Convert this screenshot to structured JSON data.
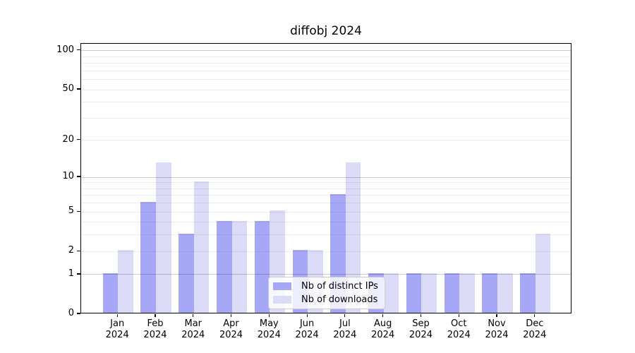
{
  "chart_data": {
    "type": "bar",
    "title": "diffobj 2024",
    "xlabel": "",
    "ylabel": "",
    "yscale": "log1p",
    "ylim": [
      0,
      113
    ],
    "yticks": [
      0,
      1,
      2,
      5,
      10,
      20,
      50,
      100
    ],
    "grid": true,
    "grid_major": [
      1,
      10,
      100
    ],
    "grid_minor": [
      2,
      3,
      4,
      5,
      6,
      7,
      8,
      9,
      20,
      30,
      40,
      50,
      60,
      70,
      80,
      90
    ],
    "x_categories": [
      "Jan 2024",
      "Feb 2024",
      "Mar 2024",
      "Apr 2024",
      "May 2024",
      "Jun 2024",
      "Jul 2024",
      "Aug 2024",
      "Sep 2024",
      "Oct 2024",
      "Nov 2024",
      "Dec 2024"
    ],
    "series": [
      {
        "name": "Nb of distinct IPs",
        "color": "#a7a7f7",
        "values": [
          1,
          6,
          3,
          4,
          4,
          2,
          7,
          1,
          1,
          1,
          1,
          1
        ]
      },
      {
        "name": "Nb of downloads",
        "color": "#dbdbf8",
        "values": [
          2,
          13,
          9,
          4,
          5,
          2,
          13,
          1,
          1,
          1,
          1,
          3
        ]
      }
    ],
    "legend": {
      "position": "lower-center"
    }
  },
  "colors": {
    "background": "#ffffff",
    "spine": "#000000",
    "grid_major": "rgba(0,0,0,0.20)",
    "grid_minor": "rgba(0,0,0,0.07)",
    "legend_border": "#cccccc",
    "legend_background": "rgba(255,255,255,0.8)"
  }
}
